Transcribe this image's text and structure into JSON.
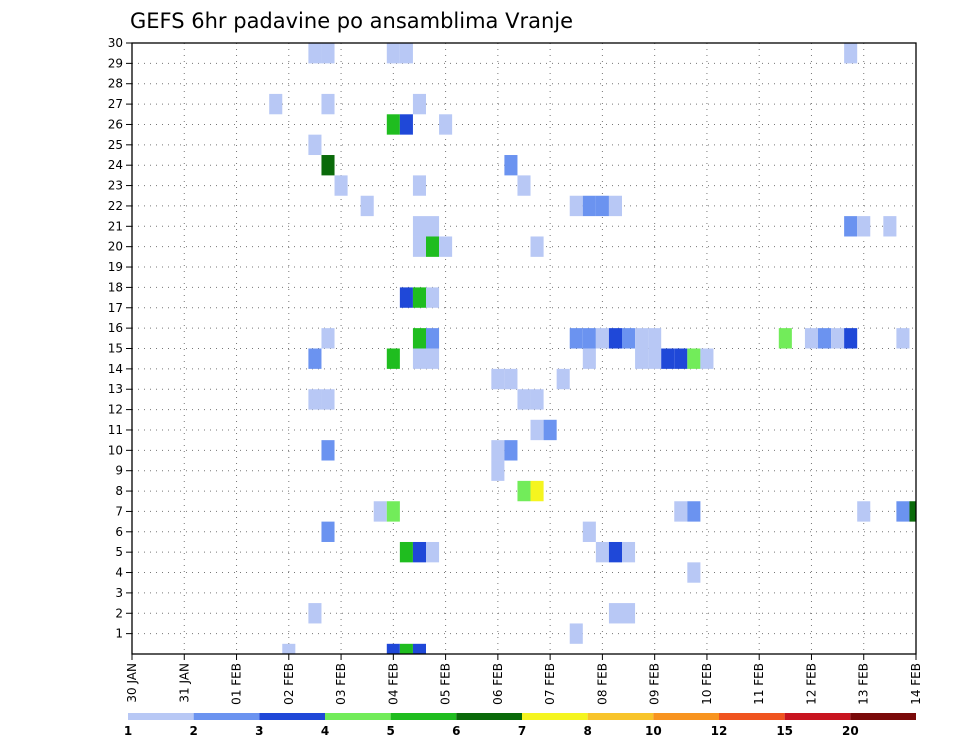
{
  "chart_data": {
    "type": "heatmap",
    "title": "GEFS 6hr padavine po ansamblima Vranje",
    "xlabel": "",
    "ylabel": "",
    "x_range": [
      0,
      60
    ],
    "y_range": [
      0,
      30
    ],
    "x_ticks": [
      {
        "pos": 0,
        "label": "30 JAN"
      },
      {
        "pos": 4,
        "label": "31 JAN"
      },
      {
        "pos": 8,
        "label": "01 FEB"
      },
      {
        "pos": 12,
        "label": "02 FEB"
      },
      {
        "pos": 16,
        "label": "03 FEB"
      },
      {
        "pos": 20,
        "label": "04 FEB"
      },
      {
        "pos": 24,
        "label": "05 FEB"
      },
      {
        "pos": 28,
        "label": "06 FEB"
      },
      {
        "pos": 32,
        "label": "07 FEB"
      },
      {
        "pos": 36,
        "label": "08 FEB"
      },
      {
        "pos": 40,
        "label": "09 FEB"
      },
      {
        "pos": 44,
        "label": "10 FEB"
      },
      {
        "pos": 48,
        "label": "11 FEB"
      },
      {
        "pos": 52,
        "label": "12 FEB"
      },
      {
        "pos": 56,
        "label": "13 FEB"
      },
      {
        "pos": 60,
        "label": "14 FEB"
      }
    ],
    "y_ticks": [
      1,
      2,
      3,
      4,
      5,
      6,
      7,
      8,
      9,
      10,
      11,
      12,
      13,
      14,
      15,
      16,
      17,
      18,
      19,
      20,
      21,
      22,
      23,
      24,
      25,
      26,
      27,
      28,
      29,
      30
    ],
    "grid": true,
    "colorbar": {
      "labels": [
        "1",
        "2",
        "3",
        "4",
        "5",
        "6",
        "7",
        "8",
        "10",
        "12",
        "15",
        "20"
      ],
      "colors": [
        "#b8c8f5",
        "#6b93f0",
        "#1f48d8",
        "#72ec5a",
        "#1fbd1f",
        "#0a6a0a",
        "#f5f51f",
        "#f8c42a",
        "#f8941f",
        "#f0541f",
        "#c8141f",
        "#7a0a0a"
      ]
    },
    "cells": [
      {
        "x": 14,
        "y": 29.5,
        "c": 1
      },
      {
        "x": 15,
        "y": 29.5,
        "c": 1
      },
      {
        "x": 20,
        "y": 29.5,
        "c": 1
      },
      {
        "x": 21,
        "y": 29.5,
        "c": 1
      },
      {
        "x": 55,
        "y": 29.5,
        "c": 1
      },
      {
        "x": 11,
        "y": 27,
        "c": 1
      },
      {
        "x": 15,
        "y": 27,
        "c": 1
      },
      {
        "x": 22,
        "y": 27,
        "c": 1
      },
      {
        "x": 20,
        "y": 26,
        "c": 5
      },
      {
        "x": 21,
        "y": 26,
        "c": 3
      },
      {
        "x": 24,
        "y": 26,
        "c": 1
      },
      {
        "x": 14,
        "y": 25,
        "c": 1
      },
      {
        "x": 15,
        "y": 24,
        "c": 6
      },
      {
        "x": 29,
        "y": 24,
        "c": 2
      },
      {
        "x": 16,
        "y": 23,
        "c": 1
      },
      {
        "x": 22,
        "y": 23,
        "c": 1
      },
      {
        "x": 30,
        "y": 23,
        "c": 1
      },
      {
        "x": 18,
        "y": 22,
        "c": 1
      },
      {
        "x": 34,
        "y": 22,
        "c": 1
      },
      {
        "x": 35,
        "y": 22,
        "c": 2
      },
      {
        "x": 36,
        "y": 22,
        "c": 2
      },
      {
        "x": 37,
        "y": 22,
        "c": 1
      },
      {
        "x": 22,
        "y": 21,
        "c": 1
      },
      {
        "x": 23,
        "y": 21,
        "c": 1
      },
      {
        "x": 55,
        "y": 21,
        "c": 2
      },
      {
        "x": 56,
        "y": 21,
        "c": 1
      },
      {
        "x": 58,
        "y": 21,
        "c": 1
      },
      {
        "x": 22,
        "y": 20,
        "c": 1
      },
      {
        "x": 23,
        "y": 20,
        "c": 5
      },
      {
        "x": 24,
        "y": 20,
        "c": 1
      },
      {
        "x": 31,
        "y": 20,
        "c": 1
      },
      {
        "x": 21,
        "y": 17.5,
        "c": 3
      },
      {
        "x": 22,
        "y": 17.5,
        "c": 5
      },
      {
        "x": 23,
        "y": 17.5,
        "c": 1
      },
      {
        "x": 15,
        "y": 15.5,
        "c": 1
      },
      {
        "x": 22,
        "y": 15.5,
        "c": 5
      },
      {
        "x": 23,
        "y": 15.5,
        "c": 2
      },
      {
        "x": 34,
        "y": 15.5,
        "c": 2
      },
      {
        "x": 35,
        "y": 15.5,
        "c": 2
      },
      {
        "x": 36,
        "y": 15.5,
        "c": 1
      },
      {
        "x": 37,
        "y": 15.5,
        "c": 3
      },
      {
        "x": 38,
        "y": 15.5,
        "c": 2
      },
      {
        "x": 39,
        "y": 15.5,
        "c": 1
      },
      {
        "x": 40,
        "y": 15.5,
        "c": 1
      },
      {
        "x": 50,
        "y": 15.5,
        "c": 4
      },
      {
        "x": 52,
        "y": 15.5,
        "c": 1
      },
      {
        "x": 53,
        "y": 15.5,
        "c": 2
      },
      {
        "x": 54,
        "y": 15.5,
        "c": 1
      },
      {
        "x": 55,
        "y": 15.5,
        "c": 3
      },
      {
        "x": 59,
        "y": 15.5,
        "c": 1
      },
      {
        "x": 14,
        "y": 14.5,
        "c": 2
      },
      {
        "x": 20,
        "y": 14.5,
        "c": 5
      },
      {
        "x": 22,
        "y": 14.5,
        "c": 1
      },
      {
        "x": 23,
        "y": 14.5,
        "c": 1
      },
      {
        "x": 35,
        "y": 14.5,
        "c": 1
      },
      {
        "x": 39,
        "y": 14.5,
        "c": 1
      },
      {
        "x": 40,
        "y": 14.5,
        "c": 1
      },
      {
        "x": 41,
        "y": 14.5,
        "c": 3
      },
      {
        "x": 42,
        "y": 14.5,
        "c": 3
      },
      {
        "x": 43,
        "y": 14.5,
        "c": 4
      },
      {
        "x": 44,
        "y": 14.5,
        "c": 1
      },
      {
        "x": 28,
        "y": 13.5,
        "c": 1
      },
      {
        "x": 29,
        "y": 13.5,
        "c": 1
      },
      {
        "x": 33,
        "y": 13.5,
        "c": 1
      },
      {
        "x": 14,
        "y": 12.5,
        "c": 1
      },
      {
        "x": 15,
        "y": 12.5,
        "c": 1
      },
      {
        "x": 30,
        "y": 12.5,
        "c": 1
      },
      {
        "x": 31,
        "y": 12.5,
        "c": 1
      },
      {
        "x": 31,
        "y": 11,
        "c": 1
      },
      {
        "x": 32,
        "y": 11,
        "c": 2
      },
      {
        "x": 15,
        "y": 10,
        "c": 2
      },
      {
        "x": 28,
        "y": 10,
        "c": 1
      },
      {
        "x": 29,
        "y": 10,
        "c": 2
      },
      {
        "x": 28,
        "y": 9,
        "c": 1
      },
      {
        "x": 30,
        "y": 8,
        "c": 4
      },
      {
        "x": 31,
        "y": 8,
        "c": 7
      },
      {
        "x": 19,
        "y": 7,
        "c": 1
      },
      {
        "x": 20,
        "y": 7,
        "c": 4
      },
      {
        "x": 42,
        "y": 7,
        "c": 1
      },
      {
        "x": 43,
        "y": 7,
        "c": 2
      },
      {
        "x": 56,
        "y": 7,
        "c": 1
      },
      {
        "x": 59,
        "y": 7,
        "c": 2
      },
      {
        "x": 60,
        "y": 7,
        "c": 6
      },
      {
        "x": 15,
        "y": 6,
        "c": 2
      },
      {
        "x": 35,
        "y": 6,
        "c": 1
      },
      {
        "x": 21,
        "y": 5,
        "c": 5
      },
      {
        "x": 22,
        "y": 5,
        "c": 3
      },
      {
        "x": 23,
        "y": 5,
        "c": 1
      },
      {
        "x": 36,
        "y": 5,
        "c": 1
      },
      {
        "x": 37,
        "y": 5,
        "c": 3
      },
      {
        "x": 38,
        "y": 5,
        "c": 1
      },
      {
        "x": 43,
        "y": 4,
        "c": 1
      },
      {
        "x": 14,
        "y": 2,
        "c": 1
      },
      {
        "x": 37,
        "y": 2,
        "c": 1
      },
      {
        "x": 38,
        "y": 2,
        "c": 1
      },
      {
        "x": 34,
        "y": 1,
        "c": 1
      },
      {
        "x": 12,
        "y": 0,
        "c": 1
      },
      {
        "x": 20,
        "y": 0,
        "c": 3
      },
      {
        "x": 21,
        "y": 0,
        "c": 5
      },
      {
        "x": 22,
        "y": 0,
        "c": 3
      }
    ]
  }
}
